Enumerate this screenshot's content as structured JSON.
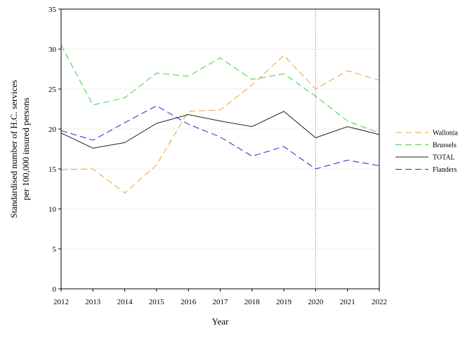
{
  "chart_data": {
    "type": "line",
    "title": "",
    "xlabel": "Year",
    "ylabel_lines": [
      "Standardised number of H.C. services",
      "per 100,000 insured persons"
    ],
    "x": [
      2012,
      2013,
      2014,
      2015,
      2016,
      2017,
      2018,
      2019,
      2020,
      2021,
      2022
    ],
    "xlim": [
      2012,
      2022
    ],
    "ylim": [
      0,
      35
    ],
    "yticks": [
      0,
      5,
      10,
      15,
      20,
      25,
      30,
      35
    ],
    "grid": "horizontal",
    "legend_position": "right",
    "reference_line": {
      "x": 2020,
      "color": "#cc3333",
      "style": "dotted"
    },
    "series": [
      {
        "name": "Wallonia",
        "color": "#f0a030",
        "style": "dashed",
        "values": [
          14.9,
          15.0,
          12.0,
          15.5,
          22.2,
          22.4,
          25.5,
          29.2,
          25.0,
          27.3,
          26.1
        ]
      },
      {
        "name": "Brussels",
        "color": "#44cc44",
        "style": "dashed",
        "values": [
          30.5,
          23.0,
          23.9,
          27.0,
          26.6,
          28.9,
          26.2,
          26.9,
          24.1,
          21.0,
          19.5
        ]
      },
      {
        "name": "TOTAL",
        "color": "#222222",
        "style": "solid",
        "values": [
          19.5,
          17.6,
          18.3,
          20.7,
          21.8,
          21.0,
          20.3,
          22.2,
          18.9,
          20.3,
          19.3
        ]
      },
      {
        "name": "Flanders",
        "color": "#2222dd",
        "style": "dashed",
        "values": [
          19.8,
          18.6,
          20.8,
          22.9,
          20.6,
          19.0,
          16.6,
          17.8,
          15.0,
          16.1,
          15.4
        ]
      }
    ]
  }
}
